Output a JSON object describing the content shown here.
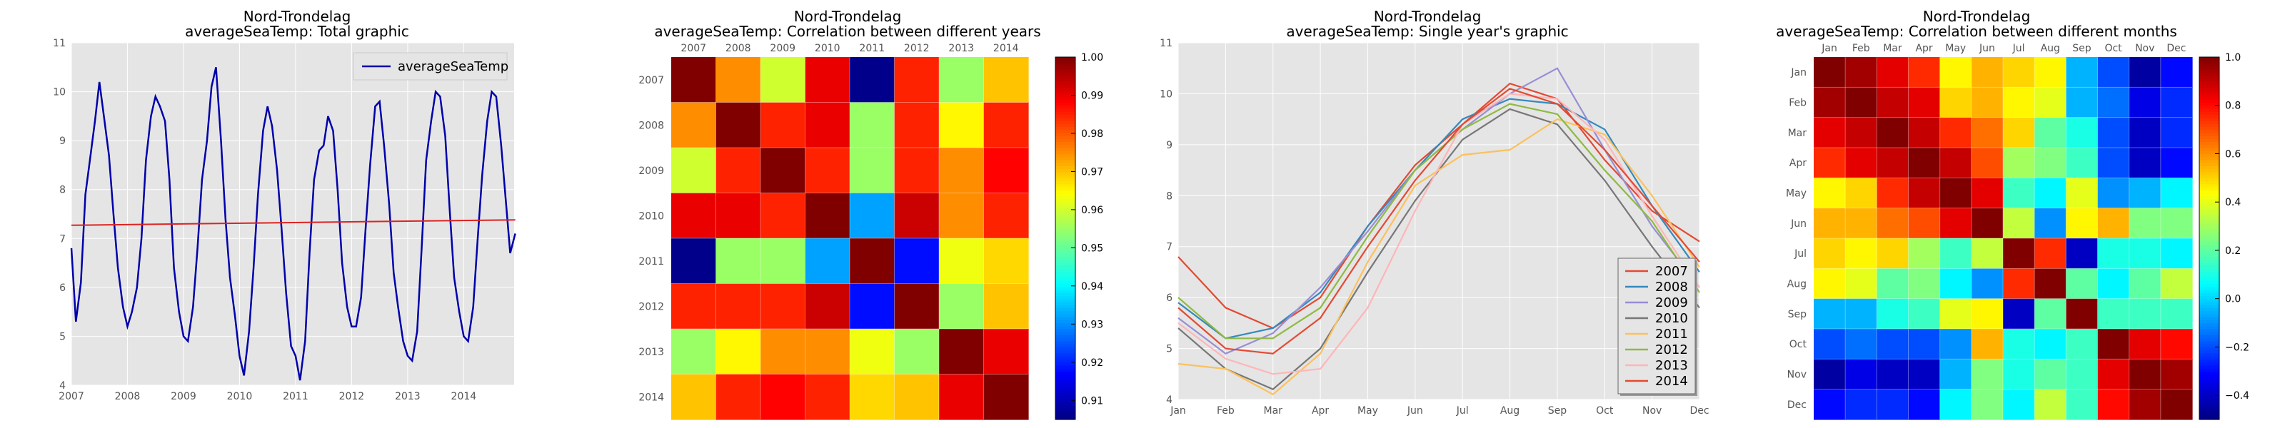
{
  "chart_data": [
    {
      "type": "line",
      "title": "Nord-Trondelag",
      "subtitle": "averageSeaTemp: Total graphic",
      "xlabel": "",
      "ylabel": "",
      "xlim": [
        2007.0,
        2014.9
      ],
      "ylim": [
        4,
        11
      ],
      "x_ticks": [
        "2007",
        "2008",
        "2009",
        "2010",
        "2011",
        "2012",
        "2013",
        "2014"
      ],
      "y_ticks": [
        "4",
        "5",
        "6",
        "7",
        "8",
        "9",
        "10",
        "11"
      ],
      "legend": "averageSeaTemp",
      "legend_position": "upper right",
      "grid": true,
      "series": [
        {
          "name": "averageSeaTemp",
          "color": "#0000aa",
          "points": [
            [
              2007.0,
              6.8
            ],
            [
              2007.08,
              5.3
            ],
            [
              2007.17,
              6.1
            ],
            [
              2007.25,
              7.9
            ],
            [
              2007.33,
              8.6
            ],
            [
              2007.42,
              9.4
            ],
            [
              2007.5,
              10.2
            ],
            [
              2007.58,
              9.5
            ],
            [
              2007.67,
              8.7
            ],
            [
              2007.75,
              7.5
            ],
            [
              2007.83,
              6.4
            ],
            [
              2007.92,
              5.6
            ],
            [
              2008.0,
              5.2
            ],
            [
              2008.08,
              5.5
            ],
            [
              2008.17,
              6.0
            ],
            [
              2008.25,
              7.0
            ],
            [
              2008.33,
              8.6
            ],
            [
              2008.42,
              9.5
            ],
            [
              2008.5,
              9.9
            ],
            [
              2008.58,
              9.7
            ],
            [
              2008.67,
              9.4
            ],
            [
              2008.75,
              8.2
            ],
            [
              2008.83,
              6.4
            ],
            [
              2008.92,
              5.5
            ],
            [
              2009.0,
              5.0
            ],
            [
              2009.08,
              4.9
            ],
            [
              2009.17,
              5.6
            ],
            [
              2009.25,
              6.8
            ],
            [
              2009.33,
              8.2
            ],
            [
              2009.42,
              9.0
            ],
            [
              2009.5,
              10.1
            ],
            [
              2009.58,
              10.5
            ],
            [
              2009.67,
              9.0
            ],
            [
              2009.75,
              7.4
            ],
            [
              2009.83,
              6.2
            ],
            [
              2009.92,
              5.4
            ],
            [
              2010.0,
              4.6
            ],
            [
              2010.08,
              4.2
            ],
            [
              2010.17,
              5.1
            ],
            [
              2010.25,
              6.4
            ],
            [
              2010.33,
              7.9
            ],
            [
              2010.42,
              9.2
            ],
            [
              2010.5,
              9.7
            ],
            [
              2010.58,
              9.3
            ],
            [
              2010.67,
              8.4
            ],
            [
              2010.75,
              7.2
            ],
            [
              2010.83,
              5.9
            ],
            [
              2010.92,
              4.8
            ],
            [
              2011.0,
              4.6
            ],
            [
              2011.08,
              4.1
            ],
            [
              2011.17,
              4.9
            ],
            [
              2011.25,
              6.7
            ],
            [
              2011.33,
              8.2
            ],
            [
              2011.42,
              8.8
            ],
            [
              2011.5,
              8.9
            ],
            [
              2011.58,
              9.5
            ],
            [
              2011.67,
              9.2
            ],
            [
              2011.75,
              8.0
            ],
            [
              2011.83,
              6.5
            ],
            [
              2011.92,
              5.6
            ],
            [
              2012.0,
              5.2
            ],
            [
              2012.08,
              5.2
            ],
            [
              2012.17,
              5.8
            ],
            [
              2012.25,
              7.2
            ],
            [
              2012.33,
              8.5
            ],
            [
              2012.42,
              9.7
            ],
            [
              2012.5,
              9.8
            ],
            [
              2012.58,
              8.9
            ],
            [
              2012.67,
              7.7
            ],
            [
              2012.75,
              6.3
            ],
            [
              2012.83,
              5.6
            ],
            [
              2012.92,
              4.9
            ],
            [
              2013.0,
              4.6
            ],
            [
              2013.08,
              4.5
            ],
            [
              2013.17,
              5.1
            ],
            [
              2013.25,
              6.8
            ],
            [
              2013.33,
              8.6
            ],
            [
              2013.42,
              9.4
            ],
            [
              2013.5,
              10.0
            ],
            [
              2013.58,
              9.9
            ],
            [
              2013.67,
              9.1
            ],
            [
              2013.75,
              7.6
            ],
            [
              2013.83,
              6.2
            ],
            [
              2013.92,
              5.5
            ],
            [
              2014.0,
              5.0
            ],
            [
              2014.08,
              4.9
            ],
            [
              2014.17,
              5.6
            ],
            [
              2014.25,
              7.0
            ],
            [
              2014.33,
              8.3
            ],
            [
              2014.42,
              9.4
            ],
            [
              2014.5,
              10.0
            ],
            [
              2014.58,
              9.9
            ],
            [
              2014.67,
              8.9
            ],
            [
              2014.75,
              7.8
            ],
            [
              2014.83,
              6.7
            ],
            [
              2014.92,
              7.1
            ]
          ]
        },
        {
          "name": "",
          "color": "#dd2222",
          "points": [
            [
              2007.0,
              7.27
            ],
            [
              2014.92,
              7.38
            ]
          ]
        }
      ]
    },
    {
      "type": "heatmap",
      "title": "Nord-Trondelag",
      "subtitle": "averageSeaTemp: Correlation between different years",
      "x_labels": [
        "2007",
        "2008",
        "2009",
        "2010",
        "2011",
        "2012",
        "2013",
        "2014"
      ],
      "y_labels": [
        "2007",
        "2008",
        "2009",
        "2010",
        "2011",
        "2012",
        "2013",
        "2014"
      ],
      "x_labels_position": "top",
      "vmin": 0.905,
      "vmax": 1.0,
      "colormap": "jet",
      "colorbar_ticks": [
        "0.91",
        "0.92",
        "0.93",
        "0.94",
        "0.95",
        "0.96",
        "0.97",
        "0.98",
        "0.99",
        "1.00"
      ],
      "matrix": [
        [
          1.0,
          0.975,
          0.96,
          0.99,
          0.906,
          0.985,
          0.955,
          0.97
        ],
        [
          0.975,
          1.0,
          0.985,
          0.99,
          0.955,
          0.985,
          0.965,
          0.985
        ],
        [
          0.96,
          0.985,
          1.0,
          0.985,
          0.955,
          0.985,
          0.975,
          0.988
        ],
        [
          0.99,
          0.99,
          0.985,
          1.0,
          0.932,
          0.993,
          0.975,
          0.985
        ],
        [
          0.906,
          0.955,
          0.955,
          0.932,
          1.0,
          0.918,
          0.963,
          0.968
        ],
        [
          0.985,
          0.985,
          0.985,
          0.993,
          0.918,
          1.0,
          0.955,
          0.97
        ],
        [
          0.955,
          0.965,
          0.975,
          0.975,
          0.963,
          0.955,
          1.0,
          0.99
        ],
        [
          0.97,
          0.985,
          0.988,
          0.985,
          0.968,
          0.97,
          0.99,
          1.0
        ]
      ]
    },
    {
      "type": "line",
      "title": "Nord-Trondelag",
      "subtitle": "averageSeaTemp: Single year's graphic",
      "categories": [
        "Jan",
        "Feb",
        "Mar",
        "Apr",
        "May",
        "Jun",
        "Jul",
        "Aug",
        "Sep",
        "Oct",
        "Nov",
        "Dec"
      ],
      "ylim": [
        4,
        11
      ],
      "y_ticks": [
        "4",
        "5",
        "6",
        "7",
        "8",
        "9",
        "10",
        "11"
      ],
      "grid": true,
      "legend_position": "lower right",
      "series": [
        {
          "name": "2007",
          "color": "#e24a33",
          "values": [
            6.8,
            5.8,
            5.4,
            6.0,
            7.4,
            8.6,
            9.4,
            10.2,
            9.9,
            8.7,
            7.7,
            7.1
          ]
        },
        {
          "name": "2008",
          "color": "#348abd",
          "values": [
            5.9,
            5.2,
            5.4,
            6.1,
            7.4,
            8.5,
            9.5,
            9.9,
            9.8,
            9.3,
            7.8,
            6.5
          ]
        },
        {
          "name": "2009",
          "color": "#988ed5",
          "values": [
            5.6,
            4.9,
            5.3,
            6.2,
            7.3,
            8.5,
            9.3,
            10.0,
            10.5,
            8.9,
            7.4,
            6.2
          ]
        },
        {
          "name": "2010",
          "color": "#777777",
          "values": [
            5.4,
            4.6,
            4.2,
            5.0,
            6.5,
            7.9,
            9.1,
            9.7,
            9.4,
            8.3,
            7.0,
            5.8
          ]
        },
        {
          "name": "2011",
          "color": "#fbc15e",
          "values": [
            4.7,
            4.6,
            4.1,
            4.9,
            6.7,
            8.2,
            8.8,
            8.9,
            9.5,
            9.2,
            8.0,
            6.6
          ]
        },
        {
          "name": "2012",
          "color": "#8eba42",
          "values": [
            6.0,
            5.2,
            5.2,
            5.8,
            7.2,
            8.5,
            9.3,
            9.8,
            9.6,
            8.5,
            7.5,
            6.1
          ]
        },
        {
          "name": "2013",
          "color": "#ffb5b8",
          "values": [
            5.5,
            4.8,
            4.5,
            4.6,
            5.8,
            7.7,
            9.4,
            10.0,
            9.9,
            9.1,
            7.6,
            6.2
          ]
        },
        {
          "name": "2014",
          "color": "#e24a33",
          "values": [
            5.8,
            5.0,
            4.9,
            5.6,
            7.0,
            8.3,
            9.4,
            10.1,
            9.8,
            8.9,
            7.8,
            6.7
          ]
        }
      ]
    },
    {
      "type": "heatmap",
      "title": "Nord-Trondelag",
      "subtitle": "averageSeaTemp: Correlation between different months",
      "x_labels": [
        "Jan",
        "Feb",
        "Mar",
        "Apr",
        "May",
        "Jun",
        "Jul",
        "Aug",
        "Sep",
        "Oct",
        "Nov",
        "Dec"
      ],
      "y_labels": [
        "Jan",
        "Feb",
        "Mar",
        "Apr",
        "May",
        "Jun",
        "Jul",
        "Aug",
        "Sep",
        "Oct",
        "Nov",
        "Dec"
      ],
      "x_labels_position": "top",
      "vmin": -0.5,
      "vmax": 1.0,
      "colormap": "jet",
      "colorbar_ticks": [
        "−0.4",
        "−0.2",
        "0.0",
        "0.2",
        "0.4",
        "0.6",
        "0.8",
        "1.0"
      ],
      "matrix": [
        [
          1.0,
          0.95,
          0.85,
          0.75,
          0.45,
          0.55,
          0.5,
          0.45,
          -0.05,
          -0.2,
          -0.45,
          -0.3
        ],
        [
          0.95,
          1.0,
          0.9,
          0.85,
          0.5,
          0.55,
          0.45,
          0.4,
          -0.05,
          -0.15,
          -0.35,
          -0.25
        ],
        [
          0.85,
          0.9,
          1.0,
          0.9,
          0.75,
          0.65,
          0.5,
          0.2,
          0.1,
          -0.2,
          -0.4,
          -0.25
        ],
        [
          0.75,
          0.85,
          0.9,
          1.0,
          0.9,
          0.7,
          0.3,
          0.25,
          0.15,
          -0.2,
          -0.4,
          -0.3
        ],
        [
          0.45,
          0.5,
          0.75,
          0.9,
          1.0,
          0.85,
          0.15,
          0.05,
          0.4,
          -0.1,
          -0.05,
          0.05
        ],
        [
          0.55,
          0.55,
          0.65,
          0.7,
          0.85,
          1.0,
          0.35,
          -0.1,
          0.45,
          0.55,
          0.25,
          0.25
        ],
        [
          0.5,
          0.45,
          0.5,
          0.3,
          0.15,
          0.35,
          1.0,
          0.75,
          -0.4,
          0.1,
          0.1,
          0.05
        ],
        [
          0.45,
          0.4,
          0.2,
          0.25,
          0.05,
          -0.1,
          0.75,
          1.0,
          0.2,
          0.05,
          0.2,
          0.35
        ],
        [
          -0.05,
          -0.05,
          0.1,
          0.15,
          0.4,
          0.45,
          -0.4,
          0.2,
          1.0,
          0.15,
          0.15,
          0.15
        ],
        [
          -0.2,
          -0.15,
          -0.2,
          -0.2,
          -0.1,
          0.55,
          0.1,
          0.05,
          0.15,
          1.0,
          0.85,
          0.8
        ],
        [
          -0.45,
          -0.35,
          -0.4,
          -0.4,
          -0.05,
          0.25,
          0.1,
          0.2,
          0.15,
          0.85,
          1.0,
          0.95
        ],
        [
          -0.3,
          -0.25,
          -0.25,
          -0.3,
          0.05,
          0.25,
          0.05,
          0.35,
          0.15,
          0.8,
          0.95,
          1.0
        ]
      ]
    }
  ]
}
